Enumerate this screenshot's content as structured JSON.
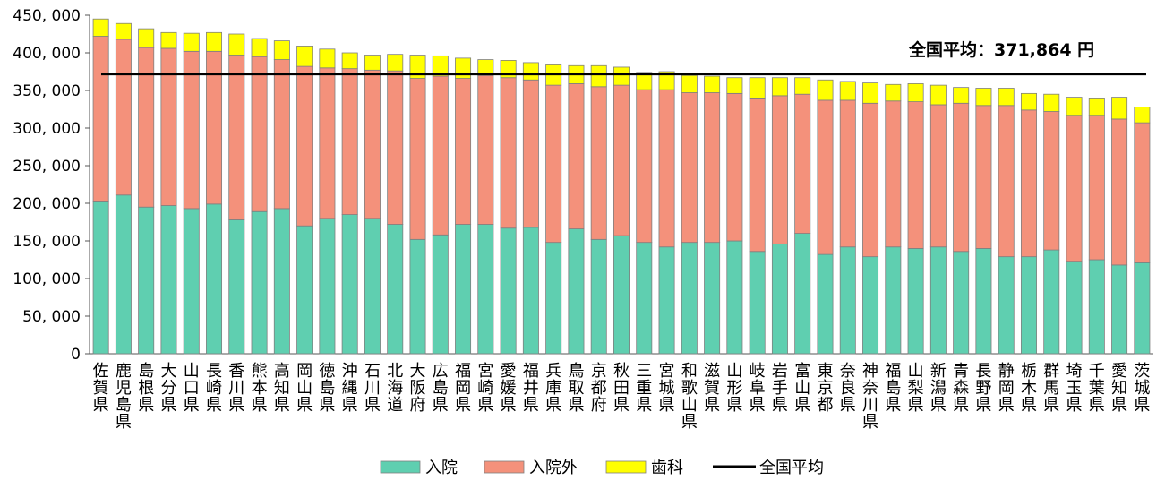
{
  "chart_data": {
    "type": "bar",
    "stacked": true,
    "ylim": [
      0,
      450000
    ],
    "yticks": [
      "0",
      "50, 000",
      "100, 000",
      "150, 000",
      "200, 000",
      "250, 000",
      "300, 000",
      "350, 000",
      "400, 000",
      "450, 000"
    ],
    "grid": false,
    "legend_placement": "bottom",
    "categories": [
      "佐賀県",
      "鹿児島県",
      "島根県",
      "大分県",
      "山口県",
      "長崎県",
      "香川県",
      "熊本県",
      "高知県",
      "岡山県",
      "徳島県",
      "沖縄県",
      "石川県",
      "北海道",
      "大阪府",
      "広島県",
      "福岡県",
      "宮崎県",
      "愛媛県",
      "福井県",
      "兵庫県",
      "鳥取県",
      "京都府",
      "秋田県",
      "三重県",
      "宮城県",
      "和歌山県",
      "滋賀県",
      "山形県",
      "岐阜県",
      "岩手県",
      "富山県",
      "東京都",
      "奈良県",
      "神奈川県",
      "福島県",
      "山梨県",
      "新潟県",
      "青森県",
      "長野県",
      "静岡県",
      "栃木県",
      "群馬県",
      "埼玉県",
      "千葉県",
      "愛知県",
      "茨城県"
    ],
    "series": [
      {
        "name": "入院",
        "color": "#5fcfb0",
        "values": [
          203000,
          211000,
          195000,
          197000,
          193000,
          199000,
          178000,
          189000,
          193000,
          170000,
          180000,
          185000,
          180000,
          172000,
          152000,
          158000,
          172000,
          172000,
          167000,
          168000,
          148000,
          166000,
          152000,
          157000,
          148000,
          142000,
          148000,
          148000,
          150000,
          136000,
          146000,
          160000,
          132000,
          142000,
          129000,
          142000,
          140000,
          142000,
          136000,
          140000,
          129000,
          129000,
          138000,
          123000,
          125000,
          118000,
          121000
        ]
      },
      {
        "name": "入院外",
        "color": "#f4917b",
        "values": [
          219000,
          207000,
          212000,
          209000,
          209000,
          203000,
          219000,
          206000,
          198000,
          212000,
          200000,
          194000,
          197000,
          204000,
          214000,
          211000,
          194000,
          198000,
          200000,
          196000,
          209000,
          193000,
          203000,
          200000,
          203000,
          209000,
          199000,
          199000,
          196000,
          204000,
          197000,
          185000,
          205000,
          195000,
          204000,
          194000,
          195000,
          189000,
          197000,
          190000,
          201000,
          195000,
          184000,
          194000,
          192000,
          194000,
          186000
        ]
      },
      {
        "name": "歯科",
        "color": "#ffff00",
        "values": [
          23000,
          21000,
          25000,
          21000,
          24000,
          25000,
          28000,
          24000,
          25000,
          27000,
          25000,
          21000,
          20000,
          22000,
          31000,
          27000,
          27000,
          21000,
          23000,
          23000,
          27000,
          24000,
          28000,
          24000,
          23000,
          24000,
          23000,
          22000,
          21000,
          27000,
          24000,
          22000,
          27000,
          25000,
          27000,
          22000,
          24000,
          26000,
          21000,
          23000,
          23000,
          22000,
          23000,
          24000,
          23000,
          29000,
          21000
        ]
      }
    ],
    "average": {
      "name": "全国平均",
      "value": 371864,
      "label": "全国平均：371,864 円",
      "color": "#000000"
    }
  }
}
